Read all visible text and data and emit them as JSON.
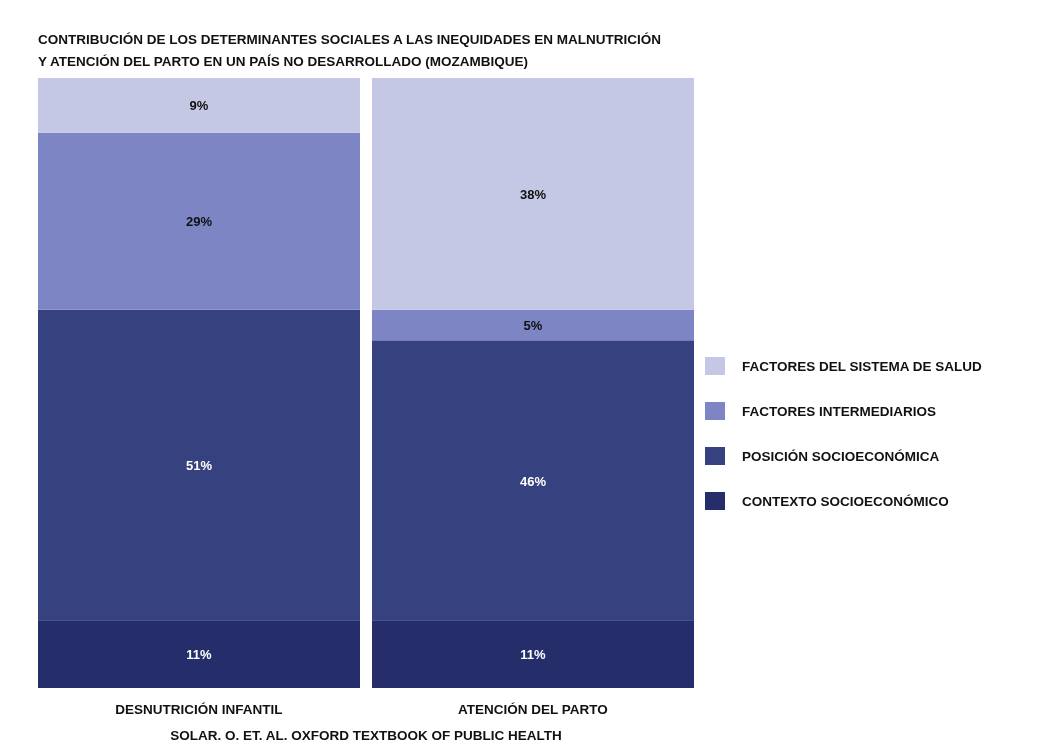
{
  "chart_data": {
    "type": "bar",
    "title": "CONTRIBUCIÓN DE LOS DETERMINANTES SOCIALES A LAS INEQUIDADES EN MALNUTRICIÓN\nY ATENCIÓN DEL PARTO EN UN PAÍS NO DESARROLLADO (MOZAMBIQUE)",
    "categories": [
      "DESNUTRICIÓN INFANTIL",
      "ATENCIÓN DEL PARTO"
    ],
    "stacked": true,
    "legend": "right",
    "annotations": [
      "SOLAR. O. ET. AL. OXFORD TEXTBOOK OF PUBLIC HEALTH"
    ],
    "series": [
      {
        "name": "CONTEXTO SOCIOECONÓMICO",
        "color": "#252e6a",
        "values": [
          11,
          11
        ],
        "value_labels": [
          "11%",
          "11%"
        ]
      },
      {
        "name": "POSICIÓN SOCIOECONÓMICA",
        "color": "#36427f",
        "values": [
          51,
          46
        ],
        "value_labels": [
          "51%",
          "46%"
        ]
      },
      {
        "name": "FACTORES INTERMEDIARIOS",
        "color": "#7d85c4",
        "values": [
          29,
          5
        ],
        "value_labels": [
          "29%",
          "5%"
        ]
      },
      {
        "name": "FACTORES DEL SISTEMA DE SALUD",
        "color": "#c5c8e4",
        "values": [
          9,
          38
        ],
        "value_labels": [
          "9%",
          "38%"
        ]
      }
    ]
  }
}
